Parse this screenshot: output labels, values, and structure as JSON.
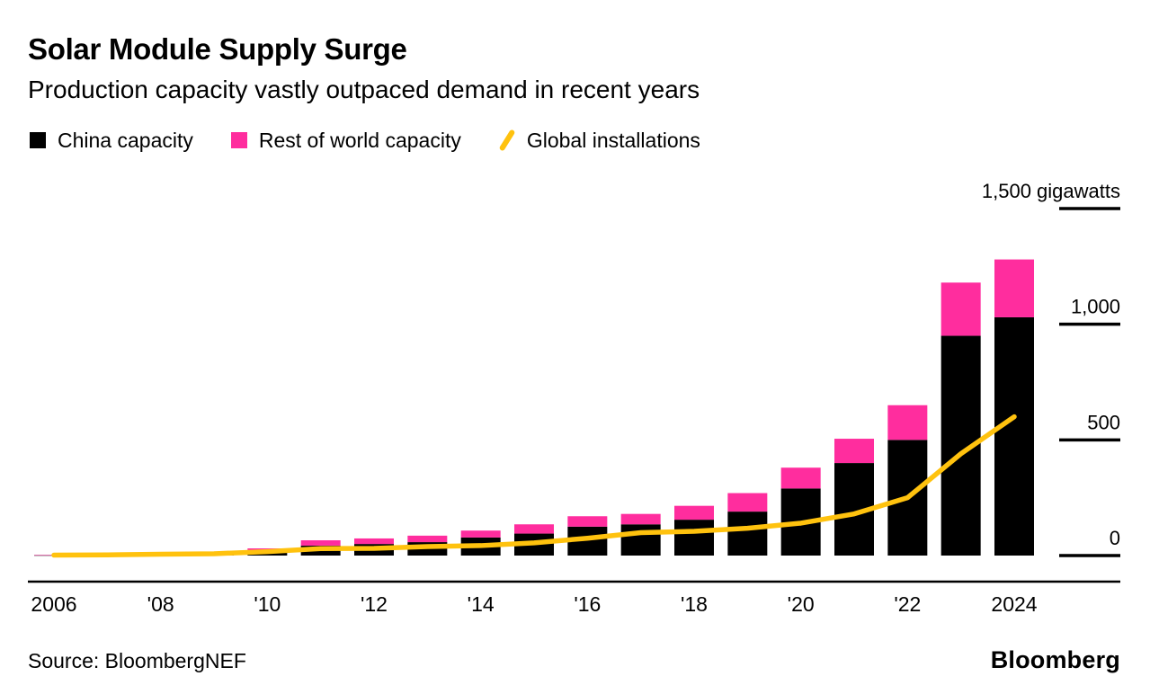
{
  "header": {
    "title": "Solar Module Supply Surge",
    "subtitle": "Production capacity vastly outpaced demand in recent years"
  },
  "legend": {
    "items": [
      {
        "label": "China capacity",
        "color": "#000000",
        "marker": "square"
      },
      {
        "label": "Rest of world capacity",
        "color": "#ff2d9e",
        "marker": "square"
      },
      {
        "label": "Global installations",
        "color": "#ffc20e",
        "marker": "line"
      }
    ]
  },
  "footer": {
    "source": "Source: BloombergNEF",
    "brand": "Bloomberg"
  },
  "colors": {
    "china": "#000000",
    "rest_of_world": "#ff2d9e",
    "installations": "#ffc20e",
    "axis": "#000000",
    "background": "#ffffff"
  },
  "chart_data": {
    "type": "bar",
    "subtype": "stacked bars with line overlay",
    "title": "Solar Module Supply Surge",
    "subtitle": "Production capacity vastly outpaced demand in recent years",
    "unit": "gigawatts",
    "ylim": [
      0,
      1500
    ],
    "grid": "right-side tick dashes only",
    "legend_position": "top-left",
    "categories": [
      2006,
      2007,
      2008,
      2009,
      2010,
      2011,
      2012,
      2013,
      2014,
      2015,
      2016,
      2017,
      2018,
      2019,
      2020,
      2021,
      2022,
      2023,
      2024
    ],
    "series": [
      {
        "name": "China capacity",
        "type": "bar",
        "color": "#000000",
        "values": [
          1,
          2,
          4,
          8,
          19,
          43,
          50,
          58,
          78,
          95,
          125,
          135,
          155,
          190,
          290,
          400,
          500,
          950,
          1030
        ]
      },
      {
        "name": "Rest of world capacity",
        "type": "bar",
        "color": "#ff2d9e",
        "values": [
          2,
          3,
          4,
          7,
          12,
          23,
          24,
          28,
          30,
          40,
          45,
          45,
          60,
          80,
          90,
          105,
          150,
          230,
          250
        ]
      },
      {
        "name": "Global installations",
        "type": "line",
        "color": "#ffc20e",
        "values": [
          2,
          3,
          6,
          8,
          17,
          30,
          31,
          39,
          43,
          55,
          75,
          99,
          105,
          118,
          140,
          180,
          250,
          440,
          600
        ]
      }
    ],
    "y_ticks": [
      {
        "value": 0,
        "label": "0"
      },
      {
        "value": 500,
        "label": "500"
      },
      {
        "value": 1000,
        "label": "1,000"
      },
      {
        "value": 1500,
        "label": "1,500 gigawatts"
      }
    ],
    "x_ticks": [
      {
        "index": 0,
        "label": "2006"
      },
      {
        "index": 2,
        "label": "'08"
      },
      {
        "index": 4,
        "label": "'10"
      },
      {
        "index": 6,
        "label": "'12"
      },
      {
        "index": 8,
        "label": "'14"
      },
      {
        "index": 10,
        "label": "'16"
      },
      {
        "index": 12,
        "label": "'18"
      },
      {
        "index": 14,
        "label": "'20"
      },
      {
        "index": 16,
        "label": "'22"
      },
      {
        "index": 18,
        "label": "2024"
      }
    ]
  }
}
